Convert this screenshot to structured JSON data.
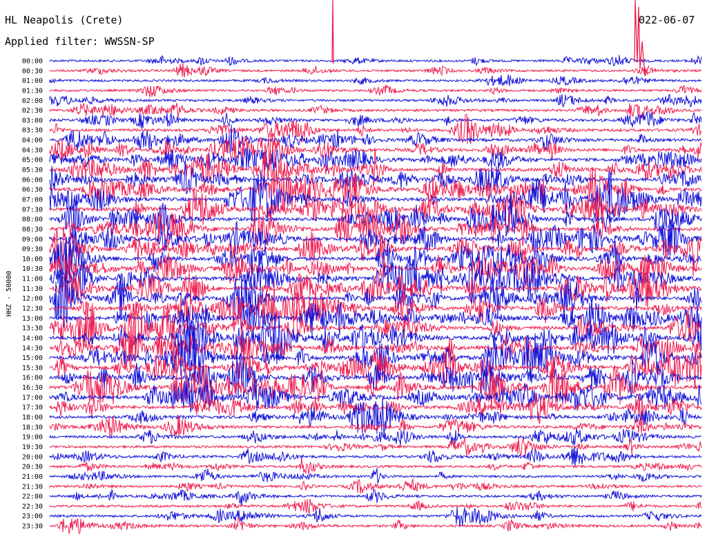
{
  "header": {
    "station": "HL Neapolis (Crete)",
    "filter": "Applied filter: WWSSN-SP",
    "date": "022-06-07"
  },
  "chart_data": {
    "type": "line",
    "title": "HL Neapolis (Crete)",
    "subtitle": "Applied filter: WWSSN-SP",
    "ylabel": "HHZ - 50000",
    "date": "022-06-07",
    "row_labels": [
      "00:00",
      "00:30",
      "01:00",
      "01:30",
      "02:00",
      "02:30",
      "03:00",
      "03:30",
      "04:00",
      "04:30",
      "05:00",
      "05:30",
      "06:00",
      "06:30",
      "07:00",
      "07:30",
      "08:00",
      "08:30",
      "09:00",
      "09:30",
      "10:00",
      "10:30",
      "11:00",
      "11:30",
      "12:00",
      "12:30",
      "13:00",
      "13:30",
      "14:00",
      "14:30",
      "15:00",
      "15:30",
      "16:00",
      "16:30",
      "17:00",
      "17:30",
      "18:00",
      "18:30",
      "19:00",
      "19:30",
      "20:00",
      "20:30",
      "21:00",
      "21:30",
      "22:00",
      "22:30",
      "23:00",
      "23:30"
    ],
    "row_amplitudes": [
      0.25,
      0.22,
      0.22,
      0.25,
      0.3,
      0.35,
      0.45,
      0.55,
      0.65,
      0.7,
      0.75,
      0.8,
      0.85,
      0.9,
      0.9,
      0.9,
      0.9,
      0.9,
      0.9,
      0.95,
      0.95,
      1.0,
      1.0,
      1.0,
      1.0,
      1.0,
      1.0,
      1.0,
      1.0,
      1.0,
      1.0,
      1.0,
      1.0,
      1.0,
      0.9,
      0.8,
      0.6,
      0.5,
      0.45,
      0.4,
      0.4,
      0.35,
      0.3,
      0.3,
      0.3,
      0.3,
      0.35,
      0.35
    ],
    "trace_colors": [
      "#1010d8",
      "#ee1c4e"
    ],
    "minutes_per_row": 30
  }
}
